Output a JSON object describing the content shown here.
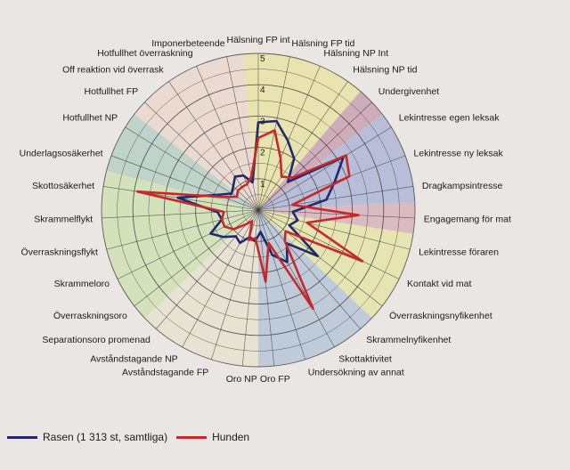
{
  "chart_data": {
    "type": "radar",
    "rmax": 5,
    "tick_labels": [
      "1",
      "2",
      "3",
      "4",
      "5"
    ],
    "categories": [
      "Hälsning FP int",
      "Hälsning FP tid",
      "Hälsning NP Int",
      "Hälsning NP tid",
      "Undergivenhet",
      "Lekintresse egen leksak",
      "Lekintresse ny leksak",
      "Dragkampsintresse",
      "Engagemang för mat",
      "Lekintresse föraren",
      "Kontakt vid mat",
      "Överraskningsnyfikenhet",
      "Skrammelnyfikenhet",
      "Skottaktivitet",
      "Undersökning av annat",
      "Oro FP",
      "Oro NP",
      "Avståndstagande FP",
      "Avståndstagande NP",
      "Separationsoro promenad",
      "Överraskningsoro",
      "Skrammeloro",
      "Överraskningsflykt",
      "Skrammelflykt",
      "Skottosäkerhet",
      "Underlagsosäkerhet",
      "Hotfullhet NP",
      "Hotfullhet FP",
      "Off reaktion vid överrask",
      "Hotfullhet överraskning",
      "Imponerbeteende"
    ],
    "series": [
      {
        "name": "Rasen (1 313 st, samtliga)",
        "color": "#1f2a6e",
        "values": [
          2.8,
          2.9,
          2.4,
          2.0,
          1.3,
          3.2,
          2.6,
          2.2,
          1.1,
          1.3,
          1.1,
          2.4,
          1.4,
          1.9,
          1.5,
          0.7,
          1.0,
          0.9,
          1.2,
          1.1,
          1.4,
          1.7,
          1.2,
          1.3,
          2.6,
          1.4,
          1.0,
          1.1,
          1.3,
          1.2,
          0.9
        ]
      },
      {
        "name": "Hunden",
        "color": "#c8282a",
        "values": [
          2.3,
          2.6,
          1.8,
          1.3,
          1.5,
          3.3,
          3.1,
          1.1,
          3.2,
          1.6,
          3.7,
          1.1,
          1.3,
          3.6,
          1.1,
          2.3,
          0.9,
          1.0,
          0.4,
          0.6,
          1.0,
          1.2,
          1.2,
          1.1,
          3.9,
          1.2,
          0.8,
          0.9,
          0.9,
          0.9,
          1.1
        ]
      }
    ],
    "sectors": [
      {
        "start": 0,
        "end": 3,
        "color": "#e7e3a4"
      },
      {
        "start": 4,
        "end": 4,
        "color": "#c9a1b2"
      },
      {
        "start": 5,
        "end": 7,
        "color": "#aeb6d3"
      },
      {
        "start": 8,
        "end": 8,
        "color": "#d7b3bb"
      },
      {
        "start": 9,
        "end": 11,
        "color": "#e4e3a6"
      },
      {
        "start": 12,
        "end": 15,
        "color": "#b7c6d6"
      },
      {
        "start": 16,
        "end": 19,
        "color": "#e6e1cf"
      },
      {
        "start": 20,
        "end": 24,
        "color": "#cfe0b4"
      },
      {
        "start": 25,
        "end": 26,
        "color": "#b6cfc5"
      },
      {
        "start": 27,
        "end": 30,
        "color": "#ead7cc"
      }
    ]
  },
  "legend": [
    {
      "label": "Rasen (1 313 st, samtliga)",
      "color": "#1f2a6e"
    },
    {
      "label": "Hunden",
      "color": "#c8282a"
    }
  ]
}
